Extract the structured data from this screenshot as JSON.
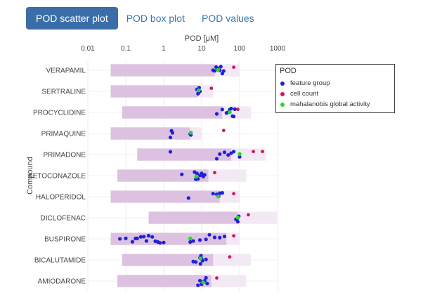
{
  "tabs": [
    {
      "label": "POD scatter plot",
      "active": true
    },
    {
      "label": "POD box plot",
      "active": false
    },
    {
      "label": "POD values",
      "active": false
    }
  ],
  "legend": {
    "title": "POD",
    "items": [
      {
        "label": "feature group",
        "color": "#1f1fdc"
      },
      {
        "label": "cell count",
        "color": "#d4145a"
      },
      {
        "label": "mahalanobis global activity",
        "color": "#22dd22"
      }
    ]
  },
  "chart_data": {
    "type": "scatter",
    "x_axis": {
      "label": "POD [μM]",
      "scale": "log",
      "ticks": [
        "0.01",
        "0.1",
        "1",
        "10",
        "100",
        "1000"
      ],
      "range": [
        0.01,
        1000
      ]
    },
    "y_axis": {
      "label": "Compound"
    },
    "colors": {
      "band_dark": "#dcc2e0",
      "band_light": "#f3e9f4",
      "feature": "#1f1fdc",
      "cell": "#d4145a",
      "maha": "#22dd22"
    },
    "compounds": [
      {
        "name": "VERAPAMIL",
        "dark": [
          0.04,
          22
        ],
        "light": [
          22,
          100
        ],
        "feature": [
          20,
          22,
          24,
          26,
          28,
          30,
          32,
          35,
          38
        ],
        "cell": [
          70
        ],
        "maha": [
          27
        ]
      },
      {
        "name": "SERTRALINE",
        "dark": [
          0.04,
          8
        ],
        "light": [
          8,
          20
        ],
        "feature": [
          7.5,
          8,
          8.3,
          8.6,
          9
        ],
        "cell": [
          18
        ],
        "maha": [
          8.3
        ]
      },
      {
        "name": "PROCYCLIDINE",
        "dark": [
          0.08,
          35
        ],
        "light": [
          35,
          200
        ],
        "feature": [
          25,
          35,
          45,
          50,
          55,
          60,
          65,
          70,
          75
        ],
        "cell": [
          90
        ],
        "maha": [
          55
        ]
      },
      {
        "name": "PRIMAQUINE",
        "dark": [
          0.04,
          5
        ],
        "light": [
          5,
          10
        ],
        "feature": [
          1.5,
          1.6,
          1.7,
          5,
          5.2
        ],
        "cell": [
          38
        ],
        "maha": [
          5.2
        ]
      },
      {
        "name": "PRIMADONE",
        "dark": [
          0.2,
          60
        ],
        "light": [
          60,
          500
        ],
        "feature": [
          1.5,
          25,
          30,
          40,
          50,
          60,
          70,
          100
        ],
        "cell": [
          230,
          400
        ],
        "maha": [
          100
        ]
      },
      {
        "name": "KETOCONAZOLE",
        "dark": [
          0.06,
          15
        ],
        "light": [
          15,
          150
        ],
        "feature": [
          3,
          6.5,
          7,
          7.5,
          8,
          9,
          10,
          11,
          12
        ],
        "cell": [
          22
        ],
        "maha": [
          7.2
        ]
      },
      {
        "name": "HALOPERIDOL",
        "dark": [
          0.04,
          30
        ],
        "light": [
          30,
          100
        ],
        "feature": [
          4.5,
          20,
          25,
          28,
          30,
          35
        ],
        "cell": [
          70
        ],
        "maha": [
          27
        ]
      },
      {
        "name": "DICLOFENAC",
        "dark": [
          0.4,
          90
        ],
        "light": [
          90,
          1000
        ],
        "feature": [
          80,
          85,
          90,
          95
        ],
        "cell": [
          170
        ],
        "maha": [
          90
        ]
      },
      {
        "name": "BUSPIRONE",
        "dark": [
          0.04,
          45
        ],
        "light": [
          45,
          100
        ],
        "feature": [
          0.07,
          0.1,
          0.15,
          0.18,
          0.2,
          0.25,
          0.3,
          0.35,
          0.4,
          0.5,
          0.6,
          0.7,
          0.8,
          1.0,
          5,
          6,
          9,
          13,
          16,
          22,
          30,
          40
        ],
        "cell": [
          70
        ],
        "maha": [
          5
        ]
      },
      {
        "name": "BICALUTAMIDE",
        "dark": [
          0.08,
          20
        ],
        "light": [
          20,
          200
        ],
        "feature": [
          6,
          7,
          9,
          9.3,
          9.6,
          10,
          10.5,
          13
        ],
        "cell": [
          55
        ],
        "maha": [
          9.3
        ]
      },
      {
        "name": "AMIODARONE",
        "dark": [
          0.06,
          18
        ],
        "light": [
          18,
          150
        ],
        "feature": [
          8,
          9,
          10,
          11,
          12,
          13,
          14
        ],
        "cell": [
          25
        ],
        "maha": [
          11
        ]
      }
    ]
  }
}
